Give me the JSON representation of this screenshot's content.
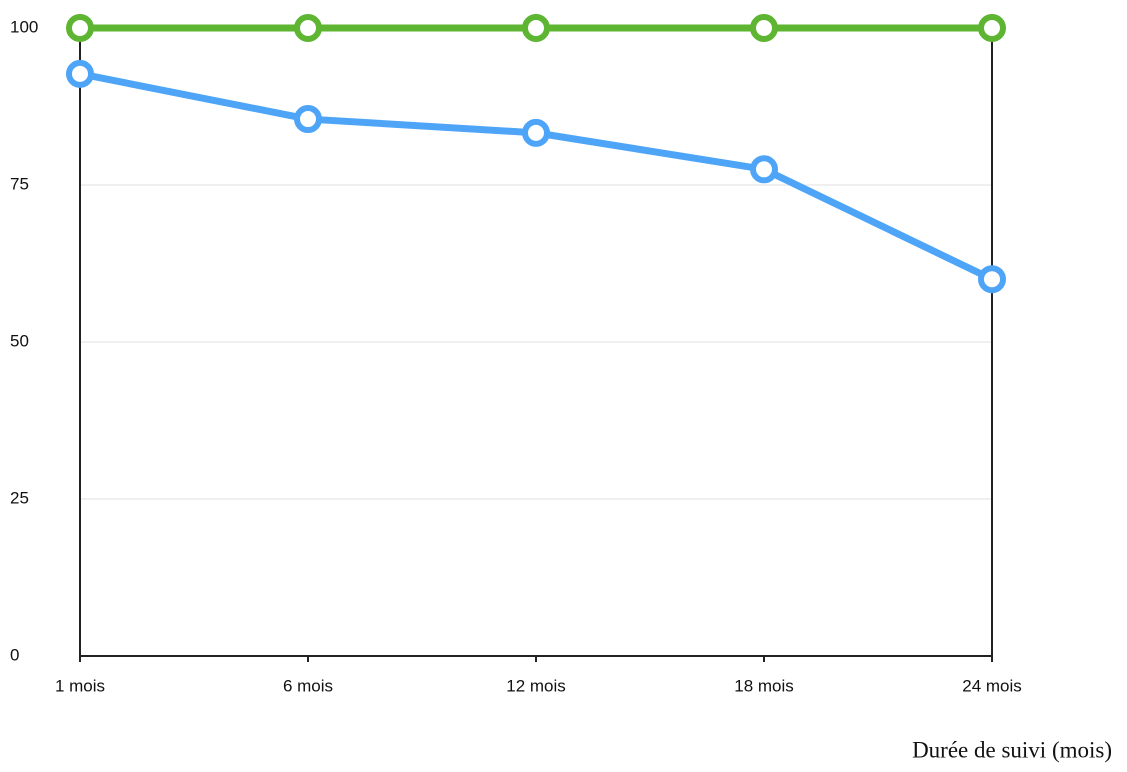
{
  "chart_data": {
    "type": "line",
    "x_label": "Durée de suivi (mois)",
    "categories": [
      "1 mois",
      "6 mois",
      "12 mois",
      "18 mois",
      "24 mois"
    ],
    "series": [
      {
        "color": "#5db532",
        "values": [
          100,
          100,
          100,
          100,
          100
        ]
      },
      {
        "color": "#4ea5f7",
        "values": [
          92.7,
          85.5,
          83.3,
          77.5,
          60
        ]
      }
    ],
    "ylim": [
      0,
      100
    ],
    "yticks": [
      0,
      25,
      50,
      75,
      100
    ],
    "grid": true
  }
}
